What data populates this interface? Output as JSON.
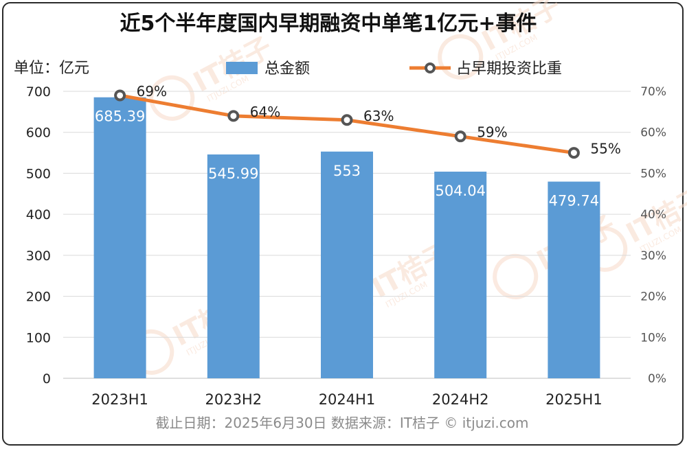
{
  "chart_data": {
    "type": "bar",
    "title": "近5个半年度国内早期融资中单笔1亿元+事件",
    "unit_label": "单位：亿元",
    "categories": [
      "2023H1",
      "2023H2",
      "2024H1",
      "2024H2",
      "2025H1"
    ],
    "series": [
      {
        "name": "总金额",
        "type": "bar",
        "axis": "left",
        "color": "#5b9bd5",
        "values": [
          685.39,
          545.99,
          553,
          504.04,
          479.74
        ],
        "labels": [
          "685.39",
          "545.99",
          "553",
          "504.04",
          "479.74"
        ]
      },
      {
        "name": "占早期投资比重",
        "type": "line",
        "axis": "right",
        "color": "#ed7d31",
        "values": [
          69,
          64,
          63,
          59,
          55
        ],
        "labels": [
          "69%",
          "64%",
          "63%",
          "59%",
          "55%"
        ]
      }
    ],
    "y_left": {
      "min": 0,
      "max": 700,
      "ticks": [
        "0",
        "100",
        "200",
        "300",
        "400",
        "500",
        "600",
        "700"
      ]
    },
    "y_right": {
      "min": 0,
      "max": 70,
      "ticks": [
        "0%",
        "10%",
        "20%",
        "30%",
        "40%",
        "50%",
        "60%",
        "70%"
      ]
    },
    "grid": true,
    "legend_position": "top"
  },
  "footer": "截止日期：2025年6月30日    数据来源：IT桔子 © itjuzi.com",
  "watermark": {
    "brand": "IT桔子",
    "site": "ITJUZI.COM",
    "color": "#f7d9c8"
  }
}
